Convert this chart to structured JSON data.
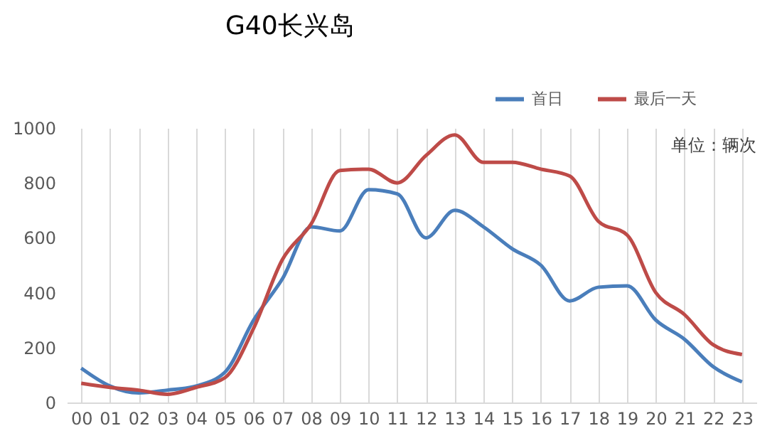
{
  "chart_data": {
    "type": "line",
    "title": "G40长兴岛",
    "categories": [
      "00",
      "01",
      "02",
      "03",
      "04",
      "05",
      "06",
      "07",
      "08",
      "09",
      "10",
      "11",
      "12",
      "13",
      "14",
      "15",
      "16",
      "17",
      "18",
      "19",
      "20",
      "21",
      "22",
      "23"
    ],
    "series": [
      {
        "name": "首日",
        "color": "#4a7ebb",
        "values": [
          125,
          60,
          35,
          45,
          60,
          110,
          300,
          450,
          640,
          625,
          775,
          760,
          600,
          700,
          640,
          560,
          500,
          370,
          420,
          425,
          300,
          230,
          130,
          75
        ]
      },
      {
        "name": "最后一天",
        "color": "#be4b48",
        "values": [
          70,
          55,
          45,
          30,
          55,
          90,
          270,
          520,
          650,
          845,
          850,
          800,
          900,
          975,
          875,
          875,
          850,
          825,
          660,
          610,
          400,
          320,
          210,
          175
        ]
      }
    ],
    "ylim": [
      0,
      1000
    ],
    "yticks": [
      0,
      200,
      400,
      600,
      800,
      1000
    ],
    "grid": "x",
    "legend": "top right",
    "marker": "none",
    "annotations": [
      "单位：辆次"
    ]
  }
}
